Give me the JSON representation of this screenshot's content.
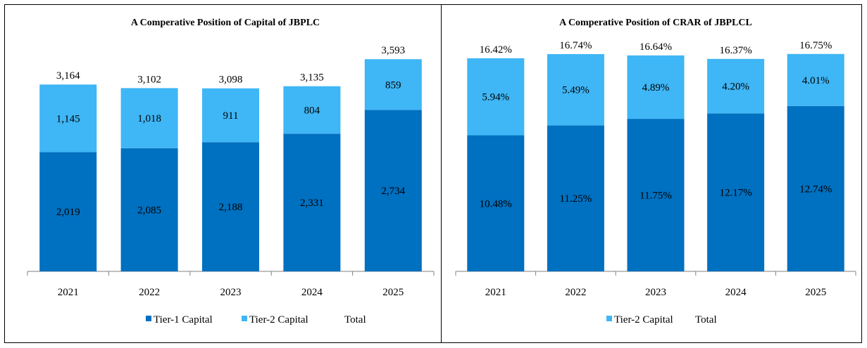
{
  "colors": {
    "tier1": "#0070C0",
    "tier2": "#3FB6F5",
    "axis": "#808080"
  },
  "chart_data": [
    {
      "type": "bar",
      "stacked": true,
      "title": "A Comperative Position of Capital of JBPLC",
      "categories": [
        "2021",
        "2022",
        "2023",
        "2024",
        "2025"
      ],
      "series": [
        {
          "name": "Tier-1 Capital",
          "values": [
            2019,
            2085,
            2188,
            2331,
            2734
          ],
          "labels": [
            "2,019",
            "2,085",
            "2,188",
            "2,331",
            "2,734"
          ]
        },
        {
          "name": "Tier-2 Capital",
          "values": [
            1145,
            1018,
            911,
            804,
            859
          ],
          "labels": [
            "1,145",
            "1,018",
            "911",
            "804",
            "859"
          ]
        }
      ],
      "totals": {
        "name": "Total",
        "values": [
          3164,
          3102,
          3098,
          3135,
          3593
        ],
        "labels": [
          "3,164",
          "3,102",
          "3,098",
          "3,135",
          "3,593"
        ]
      },
      "legend": [
        "Tier-1 Capital",
        "Tier-2 Capital",
        "Total"
      ],
      "ylim": [
        0,
        4000
      ],
      "grid": false,
      "legend_position": "bottom"
    },
    {
      "type": "bar",
      "stacked": true,
      "title": "A Comperative Position of CRAR of JBPLCL",
      "categories": [
        "2021",
        "2022",
        "2023",
        "2024",
        "2025"
      ],
      "series": [
        {
          "name": "Tier-1 Capital",
          "values": [
            10.48,
            11.25,
            11.75,
            12.17,
            12.74
          ],
          "labels": [
            "10.48%",
            "11.25%",
            "11.75%",
            "12.17%",
            "12.74%"
          ]
        },
        {
          "name": "Tier-2 Capital",
          "values": [
            5.94,
            5.49,
            4.89,
            4.2,
            4.01
          ],
          "labels": [
            "5.94%",
            "5.49%",
            "4.89%",
            "4.20%",
            "4.01%"
          ]
        }
      ],
      "totals": {
        "name": "Total",
        "values": [
          16.42,
          16.74,
          16.64,
          16.37,
          16.75
        ],
        "labels": [
          "16.42%",
          "16.74%",
          "16.64%",
          "16.37%",
          "16.75%"
        ]
      },
      "legend": [
        "Tier-2 Capital",
        "Total"
      ],
      "ylim": [
        0,
        18.2
      ],
      "grid": false,
      "legend_position": "bottom"
    }
  ]
}
